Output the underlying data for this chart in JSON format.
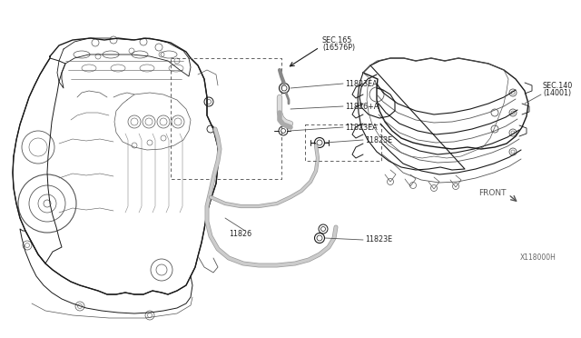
{
  "bg_color": "#ffffff",
  "line_color": "#1a1a1a",
  "light_line": "#555555",
  "dashed_color": "#555555",
  "text_color": "#222222",
  "label_color": "#333333",
  "labels": {
    "sec165": "SEC.165\n(16576P)",
    "11823EA_top": "11823EA",
    "11826A": "11826+A",
    "11823EA_mid": "11823EA",
    "11823E_mid": "11823E",
    "11826": "11826",
    "11823E_bot": "11823E",
    "sec140": "SEC.140\n(14001)",
    "front": "FRONT",
    "diagram_id": "X118000H"
  },
  "figsize": [
    6.4,
    3.72
  ],
  "dpi": 100
}
